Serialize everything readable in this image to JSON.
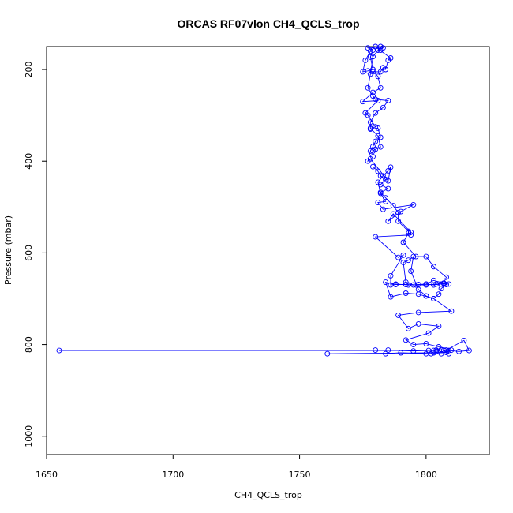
{
  "chart_data": {
    "type": "line",
    "title": "ORCAS RF07vlon CH4_QCLS_trop",
    "xlabel": "CH4_QCLS_trop",
    "ylabel": "Pressure (mbar)",
    "xlim": [
      1650,
      1825
    ],
    "ylim": [
      1040,
      150
    ],
    "y_inverted": true,
    "x_ticks": [
      1650,
      1700,
      1750,
      1800
    ],
    "y_ticks": [
      200,
      400,
      600,
      800,
      1000
    ],
    "series_color": "#0000ff",
    "marker": "open-circle",
    "grid": false,
    "legend": "none",
    "series": [
      {
        "points": [
          [
            1809,
            813
          ],
          [
            1813,
            815
          ],
          [
            1817,
            813
          ],
          [
            1815,
            791
          ],
          [
            1808,
            812
          ],
          [
            1806,
            811
          ],
          [
            1804,
            815
          ],
          [
            1803,
            813
          ],
          [
            1655,
            813
          ],
          [
            1780,
            812
          ],
          [
            1785,
            812
          ],
          [
            1795,
            814
          ],
          [
            1801,
            813
          ],
          [
            1804,
            812
          ],
          [
            1807,
            812
          ],
          [
            1809,
            820
          ],
          [
            1806,
            820
          ],
          [
            1802,
            820
          ],
          [
            1800,
            820
          ],
          [
            1790,
            818
          ],
          [
            1784,
            820
          ],
          [
            1761,
            820
          ],
          [
            1803,
            818
          ],
          [
            1808,
            817
          ],
          [
            1810,
            812
          ],
          [
            1805,
            805
          ],
          [
            1800,
            798
          ],
          [
            1795,
            800
          ],
          [
            1792,
            790
          ],
          [
            1801,
            775
          ],
          [
            1805,
            760
          ],
          [
            1797,
            755
          ],
          [
            1793,
            765
          ],
          [
            1789,
            736
          ],
          [
            1797,
            730
          ],
          [
            1810,
            727
          ],
          [
            1803,
            700
          ],
          [
            1797,
            690
          ],
          [
            1792,
            688
          ],
          [
            1786,
            696
          ],
          [
            1784,
            664
          ],
          [
            1788,
            669
          ],
          [
            1792,
            669
          ],
          [
            1796,
            670
          ],
          [
            1800,
            670
          ],
          [
            1804,
            668
          ],
          [
            1807,
            667
          ],
          [
            1809,
            668
          ],
          [
            1806,
            668
          ],
          [
            1803,
            670
          ],
          [
            1800,
            668
          ],
          [
            1797,
            669
          ],
          [
            1793,
            670
          ],
          [
            1788,
            668
          ],
          [
            1786,
            670
          ],
          [
            1786,
            650
          ],
          [
            1791,
            605
          ],
          [
            1789,
            610
          ],
          [
            1780,
            565
          ],
          [
            1794,
            561
          ],
          [
            1794,
            555
          ],
          [
            1787,
            515
          ],
          [
            1785,
            531
          ],
          [
            1790,
            510
          ],
          [
            1795,
            495
          ],
          [
            1783,
            505
          ],
          [
            1781,
            490
          ],
          [
            1784,
            488
          ],
          [
            1782,
            470
          ],
          [
            1781,
            446
          ],
          [
            1783,
            432
          ],
          [
            1785,
            421
          ],
          [
            1786,
            413
          ],
          [
            1785,
            443
          ],
          [
            1778,
            395
          ],
          [
            1777,
            400
          ],
          [
            1778,
            378
          ],
          [
            1779,
            368
          ],
          [
            1780,
            357
          ],
          [
            1782,
            348
          ],
          [
            1781,
            328
          ],
          [
            1778,
            330
          ],
          [
            1780,
            325
          ],
          [
            1777,
            300
          ],
          [
            1776,
            295
          ],
          [
            1781,
            268
          ],
          [
            1775,
            270
          ],
          [
            1779,
            250
          ],
          [
            1782,
            240
          ],
          [
            1781,
            215
          ],
          [
            1779,
            205
          ],
          [
            1782,
            205
          ],
          [
            1783,
            196
          ],
          [
            1784,
            200
          ],
          [
            1785,
            180
          ],
          [
            1786,
            175
          ],
          [
            1781,
            155
          ],
          [
            1783,
            153
          ],
          [
            1782,
            150
          ],
          [
            1777,
            153
          ],
          [
            1779,
            158
          ],
          [
            1778,
            173
          ],
          [
            1779,
            200
          ],
          [
            1777,
            203
          ],
          [
            1775,
            205
          ],
          [
            1776,
            180
          ],
          [
            1778,
            160
          ],
          [
            1780,
            150
          ],
          [
            1782,
            158
          ],
          [
            1781,
            158
          ],
          [
            1779,
            172
          ],
          [
            1778,
            210
          ],
          [
            1777,
            240
          ],
          [
            1779,
            258
          ],
          [
            1780,
            265
          ],
          [
            1785,
            268
          ],
          [
            1783,
            283
          ],
          [
            1780,
            295
          ],
          [
            1778,
            315
          ],
          [
            1778,
            328
          ],
          [
            1781,
            345
          ],
          [
            1782,
            369
          ],
          [
            1780,
            374
          ],
          [
            1779,
            378
          ],
          [
            1779,
            390
          ],
          [
            1779,
            412
          ],
          [
            1781,
            422
          ],
          [
            1782,
            432
          ],
          [
            1784,
            440
          ],
          [
            1782,
            451
          ],
          [
            1785,
            460
          ],
          [
            1782,
            468
          ],
          [
            1784,
            480
          ],
          [
            1787,
            497
          ],
          [
            1789,
            512
          ],
          [
            1789,
            531
          ],
          [
            1793,
            553
          ],
          [
            1793,
            557
          ],
          [
            1791,
            577
          ],
          [
            1796,
            608
          ],
          [
            1800,
            608
          ],
          [
            1803,
            630
          ],
          [
            1808,
            653
          ],
          [
            1807,
            666
          ],
          [
            1803,
            660
          ],
          [
            1800,
            668
          ],
          [
            1795,
            670
          ],
          [
            1792,
            664
          ],
          [
            1791,
            621
          ],
          [
            1793,
            616
          ],
          [
            1795,
            608
          ],
          [
            1794,
            640
          ],
          [
            1797,
            680
          ],
          [
            1800,
            694
          ],
          [
            1803,
            700
          ],
          [
            1805,
            690
          ],
          [
            1806,
            678
          ],
          [
            1808,
            669
          ]
        ]
      }
    ]
  }
}
